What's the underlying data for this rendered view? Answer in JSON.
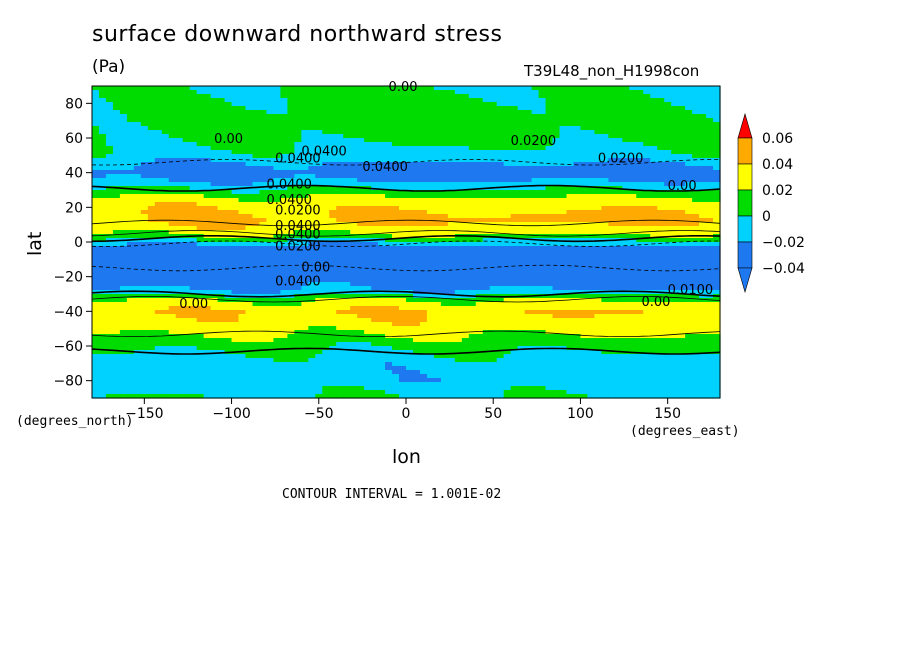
{
  "chart_data": {
    "type": "heatmap",
    "title": "surface downward northward stress",
    "units": "(Pa)",
    "run_id": "T39L48_non_H1998con",
    "xlabel": "lon",
    "ylabel": "lat",
    "x_units_label": "(degrees_east)",
    "y_units_label": "(degrees_north)",
    "xlim": [
      -180,
      180
    ],
    "ylim": [
      -90,
      90
    ],
    "x_ticks": [
      -150,
      -100,
      -50,
      0,
      50,
      100,
      150
    ],
    "x_tick_labels": [
      "−150",
      "−100",
      "−50",
      "0",
      "50",
      "100",
      "150"
    ],
    "y_ticks": [
      80,
      60,
      40,
      20,
      0,
      -20,
      -40,
      -60,
      -80
    ],
    "y_tick_labels": [
      "80",
      "60",
      "40",
      "20",
      "0",
      "−20",
      "−40",
      "−60",
      "−80"
    ],
    "colorbar": {
      "levels": [
        -0.04,
        -0.02,
        0,
        0.02,
        0.04,
        0.06
      ],
      "level_labels": [
        "−0.04",
        "−0.02",
        "0",
        "0.02",
        "0.04",
        "0.06"
      ],
      "colors": [
        "#1e78f0",
        "#00d2ff",
        "#00dc00",
        "#ffff00",
        "#ffaa00",
        "#ff0000"
      ],
      "under_color": "#1e78f0",
      "over_color": "#ff0000"
    },
    "zonal_profile": [
      {
        "lat": -90,
        "value": 0.0
      },
      {
        "lat": -80,
        "value": -0.012
      },
      {
        "lat": -70,
        "value": -0.01
      },
      {
        "lat": -60,
        "value": 0.006
      },
      {
        "lat": -50,
        "value": 0.028
      },
      {
        "lat": -40,
        "value": 0.04
      },
      {
        "lat": -33,
        "value": 0.018
      },
      {
        "lat": -28,
        "value": -0.02
      },
      {
        "lat": -20,
        "value": -0.036
      },
      {
        "lat": -12,
        "value": -0.044
      },
      {
        "lat": -5,
        "value": -0.04
      },
      {
        "lat": 0,
        "value": -0.01
      },
      {
        "lat": 3,
        "value": 0.015
      },
      {
        "lat": 7,
        "value": 0.03
      },
      {
        "lat": 12,
        "value": 0.044
      },
      {
        "lat": 18,
        "value": 0.04
      },
      {
        "lat": 24,
        "value": 0.028
      },
      {
        "lat": 30,
        "value": 0.004
      },
      {
        "lat": 35,
        "value": -0.02
      },
      {
        "lat": 40,
        "value": -0.032
      },
      {
        "lat": 45,
        "value": -0.022
      },
      {
        "lat": 50,
        "value": -0.006
      },
      {
        "lat": 60,
        "value": 0.004
      },
      {
        "lat": 70,
        "value": 0.008
      },
      {
        "lat": 80,
        "value": 0.004
      },
      {
        "lat": 90,
        "value": 0.0
      }
    ],
    "contour_labels": [
      "0.00",
      "0.00",
      "0.0400",
      "0.0200",
      "0.0400",
      "0.0400",
      "0.0200",
      "0.0400",
      "0.0400",
      "0.0200",
      "0.0400",
      "0.00",
      "0.0400",
      "0.0200",
      "0.00",
      "0.0400",
      "0.0100",
      "0.00",
      "0.00"
    ],
    "grid": false,
    "legend": "colorbar-right"
  },
  "footer": {
    "contour_interval": "CONTOUR INTERVAL = 1.001E-02"
  }
}
